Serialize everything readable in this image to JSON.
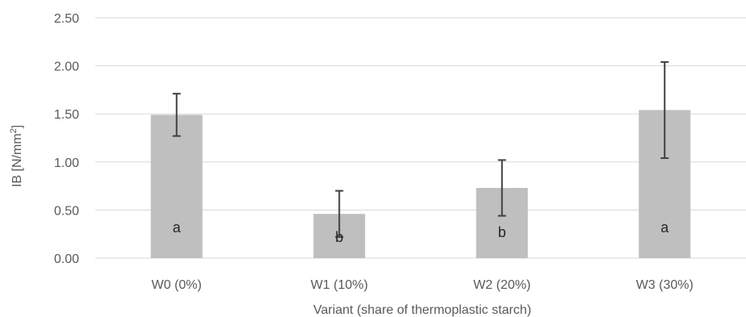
{
  "chart_data": {
    "type": "bar",
    "categories": [
      "W0 (0%)",
      "W1 (10%)",
      "W2 (20%)",
      "W3 (30%)"
    ],
    "values": [
      1.49,
      0.46,
      0.73,
      1.54
    ],
    "error": [
      0.22,
      0.24,
      0.29,
      0.5
    ],
    "group_labels": [
      "a",
      "b",
      "b",
      "a"
    ],
    "yticks": [
      "0.00",
      "0.50",
      "1.00",
      "1.50",
      "2.00",
      "2.50"
    ],
    "ylim": [
      0,
      2.5
    ],
    "ylabel_main": "IB [N/mm",
    "ylabel_sup": "2",
    "ylabel_end": "]",
    "xlabel": "Variant (share of thermoplastic starch)",
    "grid": true,
    "colors": {
      "bar": "#bfbfbf",
      "error": "#404040",
      "grid": "#d9d9d9"
    }
  }
}
